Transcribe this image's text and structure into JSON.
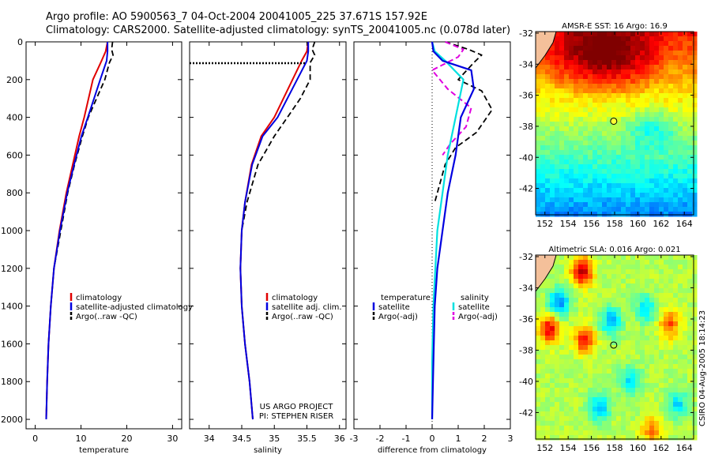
{
  "header": {
    "line1": "Argo profile: AO 5900563_7 04-Oct-2004 20041005_225 37.671S 157.92E",
    "line2": "Climatology: CARS2000. Satellite-adjusted climatology: synTS_20041005.nc (0.078d later)"
  },
  "stamp": "CSIRO 04-Aug-2005 18:14:23",
  "credit": {
    "line1": "US ARGO PROJECT",
    "line2": "PI: STEPHEN RISER"
  },
  "colors": {
    "climatology": "#e00000",
    "satellite": "#0000e0",
    "argo": "#000000",
    "sat_temp": "#00e0e0",
    "argo_sal": "#e000e0"
  },
  "chart_data": [
    {
      "type": "line",
      "title": "",
      "xlabel": "temperature",
      "ylabel": "",
      "xlim": [
        -2,
        32
      ],
      "ylim": [
        2050,
        0
      ],
      "xticks": [
        0,
        10,
        20,
        30
      ],
      "yticks": [
        0,
        200,
        400,
        600,
        800,
        1000,
        1200,
        1400,
        1600,
        1800,
        2000
      ],
      "legend": [
        "climatology",
        "satellite-adjusted climatology",
        "Argo(..raw -QC)"
      ],
      "series": [
        {
          "name": "climatology",
          "x": [
            15.8,
            15.4,
            14.5,
            12.6,
            10.7,
            9.6,
            8.2,
            6.8,
            5.3,
            4.1,
            3.4,
            2.9,
            2.6,
            2.4
          ],
          "y": [
            0,
            50,
            100,
            200,
            400,
            500,
            650,
            800,
            1000,
            1200,
            1400,
            1600,
            1800,
            2000
          ]
        },
        {
          "name": "satellite",
          "x": [
            15.8,
            15.8,
            15.6,
            14.2,
            11.5,
            10.1,
            8.5,
            7.0,
            5.4,
            4.1,
            3.4,
            2.9,
            2.6,
            2.4
          ],
          "y": [
            0,
            50,
            100,
            200,
            400,
            500,
            650,
            800,
            1000,
            1200,
            1400,
            1600,
            1800,
            2000
          ]
        },
        {
          "name": "argo",
          "x": [
            16.9,
            16.7,
            17.0,
            16.2,
            15.2,
            13.4,
            11.6,
            10.3,
            8.6,
            7.1,
            5.6,
            4.1,
            3.4,
            2.9,
            2.6,
            2.4
          ],
          "y": [
            0,
            40,
            70,
            110,
            200,
            300,
            400,
            500,
            650,
            800,
            1000,
            1200,
            1400,
            1600,
            1800,
            2000
          ]
        }
      ]
    },
    {
      "type": "line",
      "title": "",
      "xlabel": "salinity",
      "ylabel": "",
      "xlim": [
        33.7,
        36.1
      ],
      "ylim": [
        2050,
        0
      ],
      "xticks": [
        34,
        34.5,
        35,
        35.5,
        36
      ],
      "yticks": [
        0,
        200,
        400,
        600,
        800,
        1000,
        1200,
        1400,
        1600,
        1800,
        2000
      ],
      "legend": [
        "climatology",
        "satellite adj. clim.",
        "Argo(..raw -QC)"
      ],
      "series": [
        {
          "name": "climatology",
          "x": [
            35.52,
            35.5,
            35.42,
            35.28,
            35.0,
            34.8,
            34.65,
            34.55,
            34.5,
            34.48,
            34.5,
            34.55,
            34.62,
            34.67
          ],
          "y": [
            0,
            50,
            100,
            200,
            400,
            500,
            650,
            850,
            1000,
            1200,
            1400,
            1600,
            1800,
            2000
          ]
        },
        {
          "name": "satellite",
          "x": [
            35.52,
            35.52,
            35.5,
            35.35,
            35.05,
            34.82,
            34.66,
            34.55,
            34.5,
            34.48,
            34.5,
            34.55,
            34.62,
            34.67
          ],
          "y": [
            0,
            50,
            100,
            200,
            400,
            500,
            650,
            850,
            1000,
            1200,
            1400,
            1600,
            1800,
            2000
          ]
        },
        {
          "name": "argo",
          "x": [
            35.62,
            35.58,
            35.62,
            35.55,
            35.55,
            35.4,
            35.2,
            35.0,
            34.75,
            34.58,
            34.5,
            34.48,
            34.5,
            34.55,
            34.62,
            34.67
          ],
          "y": [
            0,
            40,
            70,
            110,
            200,
            300,
            400,
            500,
            650,
            850,
            1000,
            1200,
            1400,
            1600,
            1800,
            2000
          ]
        }
      ]
    },
    {
      "type": "line",
      "title": "",
      "xlabel": "difference from climatology",
      "ylabel": "",
      "xlim": [
        -3,
        3
      ],
      "ylim": [
        2050,
        0
      ],
      "xticks": [
        -3,
        -2,
        -1,
        0,
        1,
        2,
        3
      ],
      "yticks": [
        0,
        200,
        400,
        600,
        800,
        1000,
        1200,
        1400,
        1600,
        1800,
        2000
      ],
      "legend_left": {
        "heading": "temperature",
        "items": [
          "satellite",
          "Argo(-adj)"
        ]
      },
      "legend_right": {
        "heading": "salinity",
        "items": [
          "satellite",
          "Argo(-adj)"
        ]
      },
      "series": [
        {
          "name": "temperature satellite",
          "x": [
            0.0,
            0.05,
            0.4,
            1.5,
            1.6,
            1.1,
            1.0,
            0.9,
            0.6,
            0.4,
            0.2,
            0.1,
            0.05,
            0.0
          ],
          "y": [
            0,
            50,
            100,
            150,
            250,
            400,
            500,
            600,
            800,
            1000,
            1200,
            1400,
            1700,
            2000
          ]
        },
        {
          "name": "salinity satellite",
          "x": [
            0.0,
            0.1,
            0.5,
            1.2,
            0.9,
            0.6,
            0.4,
            0.2,
            0.05,
            0.0,
            0.0
          ],
          "y": [
            0,
            50,
            100,
            200,
            400,
            600,
            800,
            1000,
            1400,
            1700,
            2000
          ]
        },
        {
          "name": "temperature argo",
          "x": [
            0.5,
            1.4,
            1.9,
            1.6,
            1.0,
            1.9,
            2.3,
            1.7,
            0.9,
            0.5,
            0.3,
            0.1
          ],
          "y": [
            0,
            40,
            70,
            110,
            200,
            260,
            360,
            480,
            560,
            650,
            750,
            850
          ]
        },
        {
          "name": "salinity argo",
          "x": [
            0.5,
            1.2,
            1.0,
            0.0,
            0.6,
            1.5,
            1.3,
            0.7,
            0.4
          ],
          "y": [
            0,
            40,
            80,
            150,
            250,
            350,
            450,
            540,
            600
          ]
        }
      ]
    },
    {
      "type": "heatmap",
      "title": "AMSR-E SST: 16 Argo: 16.9",
      "xlabel": "",
      "ylabel": "",
      "xlim": [
        151.2,
        164.8
      ],
      "ylim": [
        -43.7,
        -31.9
      ],
      "xticks": [
        152,
        154,
        156,
        158,
        160,
        162,
        164
      ],
      "yticks": [
        -32,
        -34,
        -36,
        -38,
        -40,
        -42
      ],
      "marker": {
        "lon": 157.92,
        "lat": -37.671
      }
    },
    {
      "type": "heatmap",
      "title": "Altimetric SLA: 0.016 Argo: 0.021",
      "xlabel": "",
      "ylabel": "",
      "xlim": [
        151.2,
        164.8
      ],
      "ylim": [
        -43.7,
        -31.9
      ],
      "xticks": [
        152,
        154,
        156,
        158,
        160,
        162,
        164
      ],
      "yticks": [
        -32,
        -34,
        -36,
        -38,
        -40,
        -42
      ],
      "marker": {
        "lon": 157.92,
        "lat": -37.671
      }
    }
  ]
}
